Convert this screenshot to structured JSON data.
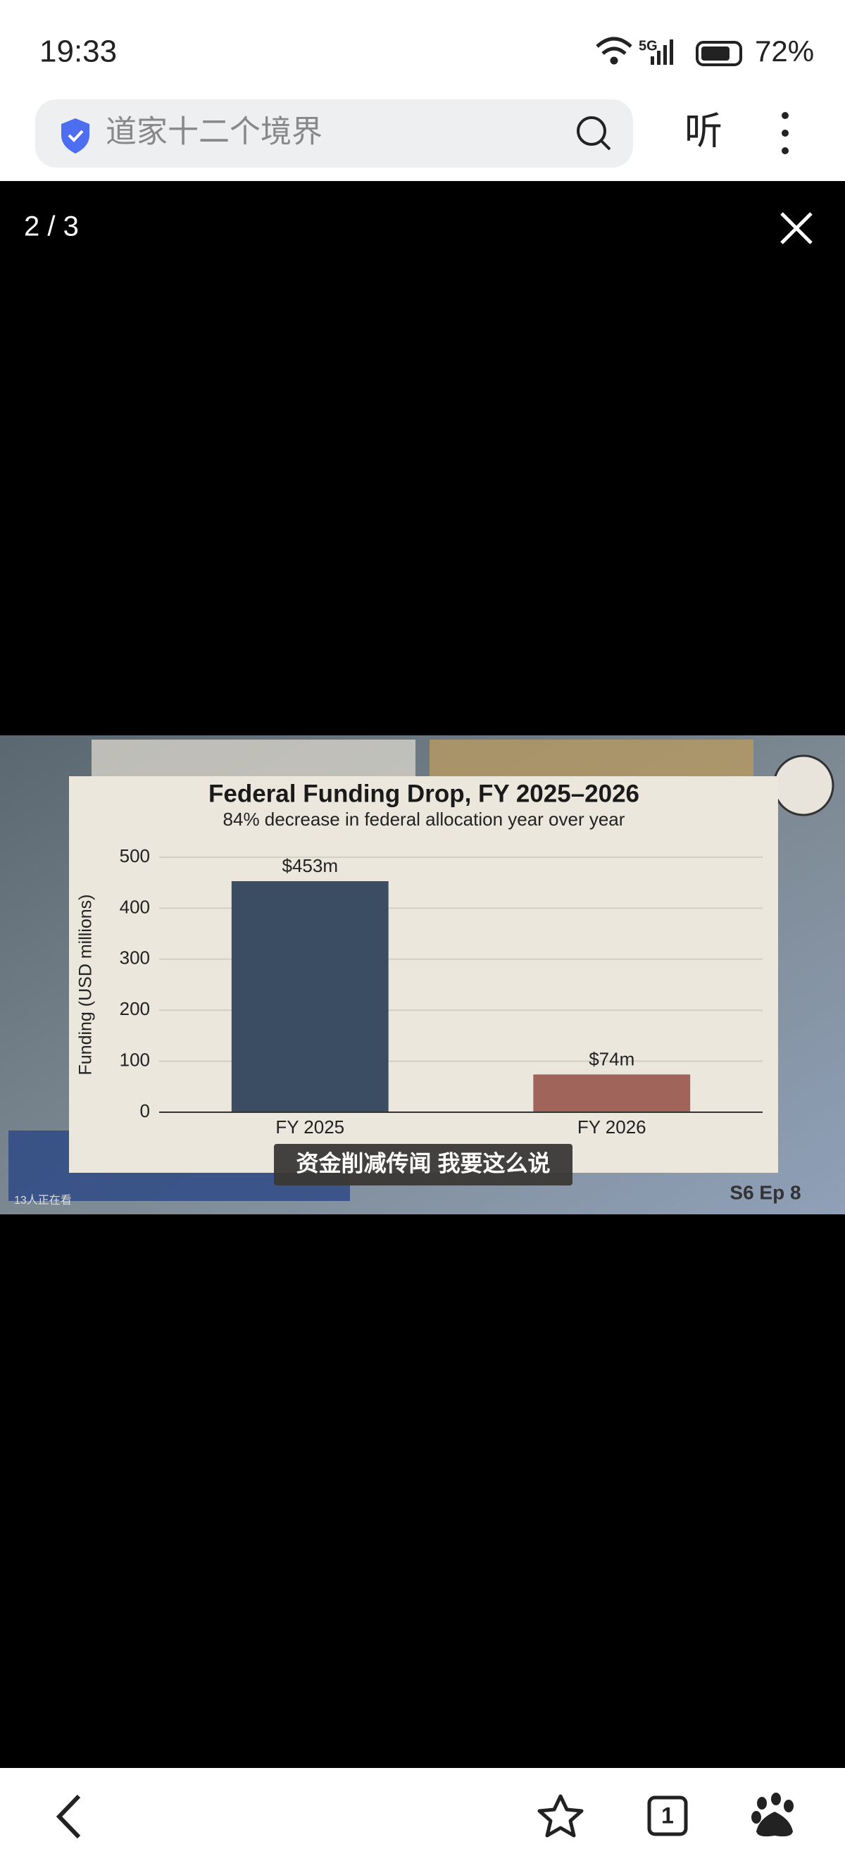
{
  "status_bar": {
    "time": "19:33",
    "network": "5G",
    "battery": "72%"
  },
  "browser": {
    "search_text": "道家十二个境界",
    "listen": "听",
    "tab_count": "1"
  },
  "viewer": {
    "counter": "2 / 3"
  },
  "video": {
    "caption": "资金削减传闻 我要这么说",
    "episode": "S6 Ep 8",
    "viewers": "13人正在看"
  },
  "chart_data": {
    "type": "bar",
    "title": "Federal Funding Drop, FY 2025–2026",
    "subtitle": "84% decrease in federal allocation year over year",
    "y_label": "Funding (USD millions)",
    "categories": [
      "FY 2025",
      "FY 2026"
    ],
    "values": [
      453,
      74
    ],
    "value_labels": [
      "$453m",
      "$74m"
    ],
    "colors": [
      "#3b4d63",
      "#a0645a"
    ],
    "ylim": [
      0,
      500
    ],
    "yticks": [
      0,
      100,
      200,
      300,
      400,
      500
    ],
    "grid": true
  }
}
